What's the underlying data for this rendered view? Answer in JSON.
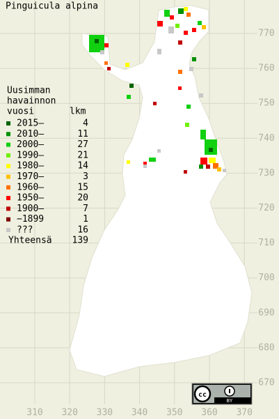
{
  "title": "Pinguicula alpina",
  "legend": {
    "header": [
      "Uusimman",
      "havainnon",
      "vuosi"
    ],
    "count_header": "lkm",
    "items": [
      {
        "label": "2015–",
        "count": 4,
        "color": "#006400"
      },
      {
        "label": "2010–",
        "count": 11,
        "color": "#009000"
      },
      {
        "label": "2000–",
        "count": 27,
        "color": "#10d010"
      },
      {
        "label": "1990–",
        "count": 21,
        "color": "#70f000"
      },
      {
        "label": "1980–",
        "count": 14,
        "color": "#ffff00"
      },
      {
        "label": "1970–",
        "count": 3,
        "color": "#ffc000"
      },
      {
        "label": "1960–",
        "count": 15,
        "color": "#ff7000"
      },
      {
        "label": "1950–",
        "count": 20,
        "color": "#ff0000"
      },
      {
        "label": "1900–",
        "count": 7,
        "color": "#c00000"
      },
      {
        "label": "−1899",
        "count": 1,
        "color": "#800000"
      },
      {
        "label": "???",
        "count": 16,
        "color": "#c8c8c8"
      }
    ],
    "total_label": "Yhteensä",
    "total": 139
  },
  "grid": {
    "x_labels": [
      "310",
      "320",
      "330",
      "340",
      "350",
      "360",
      "370"
    ],
    "y_labels": [
      "770",
      "760",
      "750",
      "740",
      "730",
      "720",
      "710",
      "700",
      "690",
      "680",
      "670"
    ]
  },
  "badge": {
    "cc": "cc",
    "by": "BY"
  }
}
